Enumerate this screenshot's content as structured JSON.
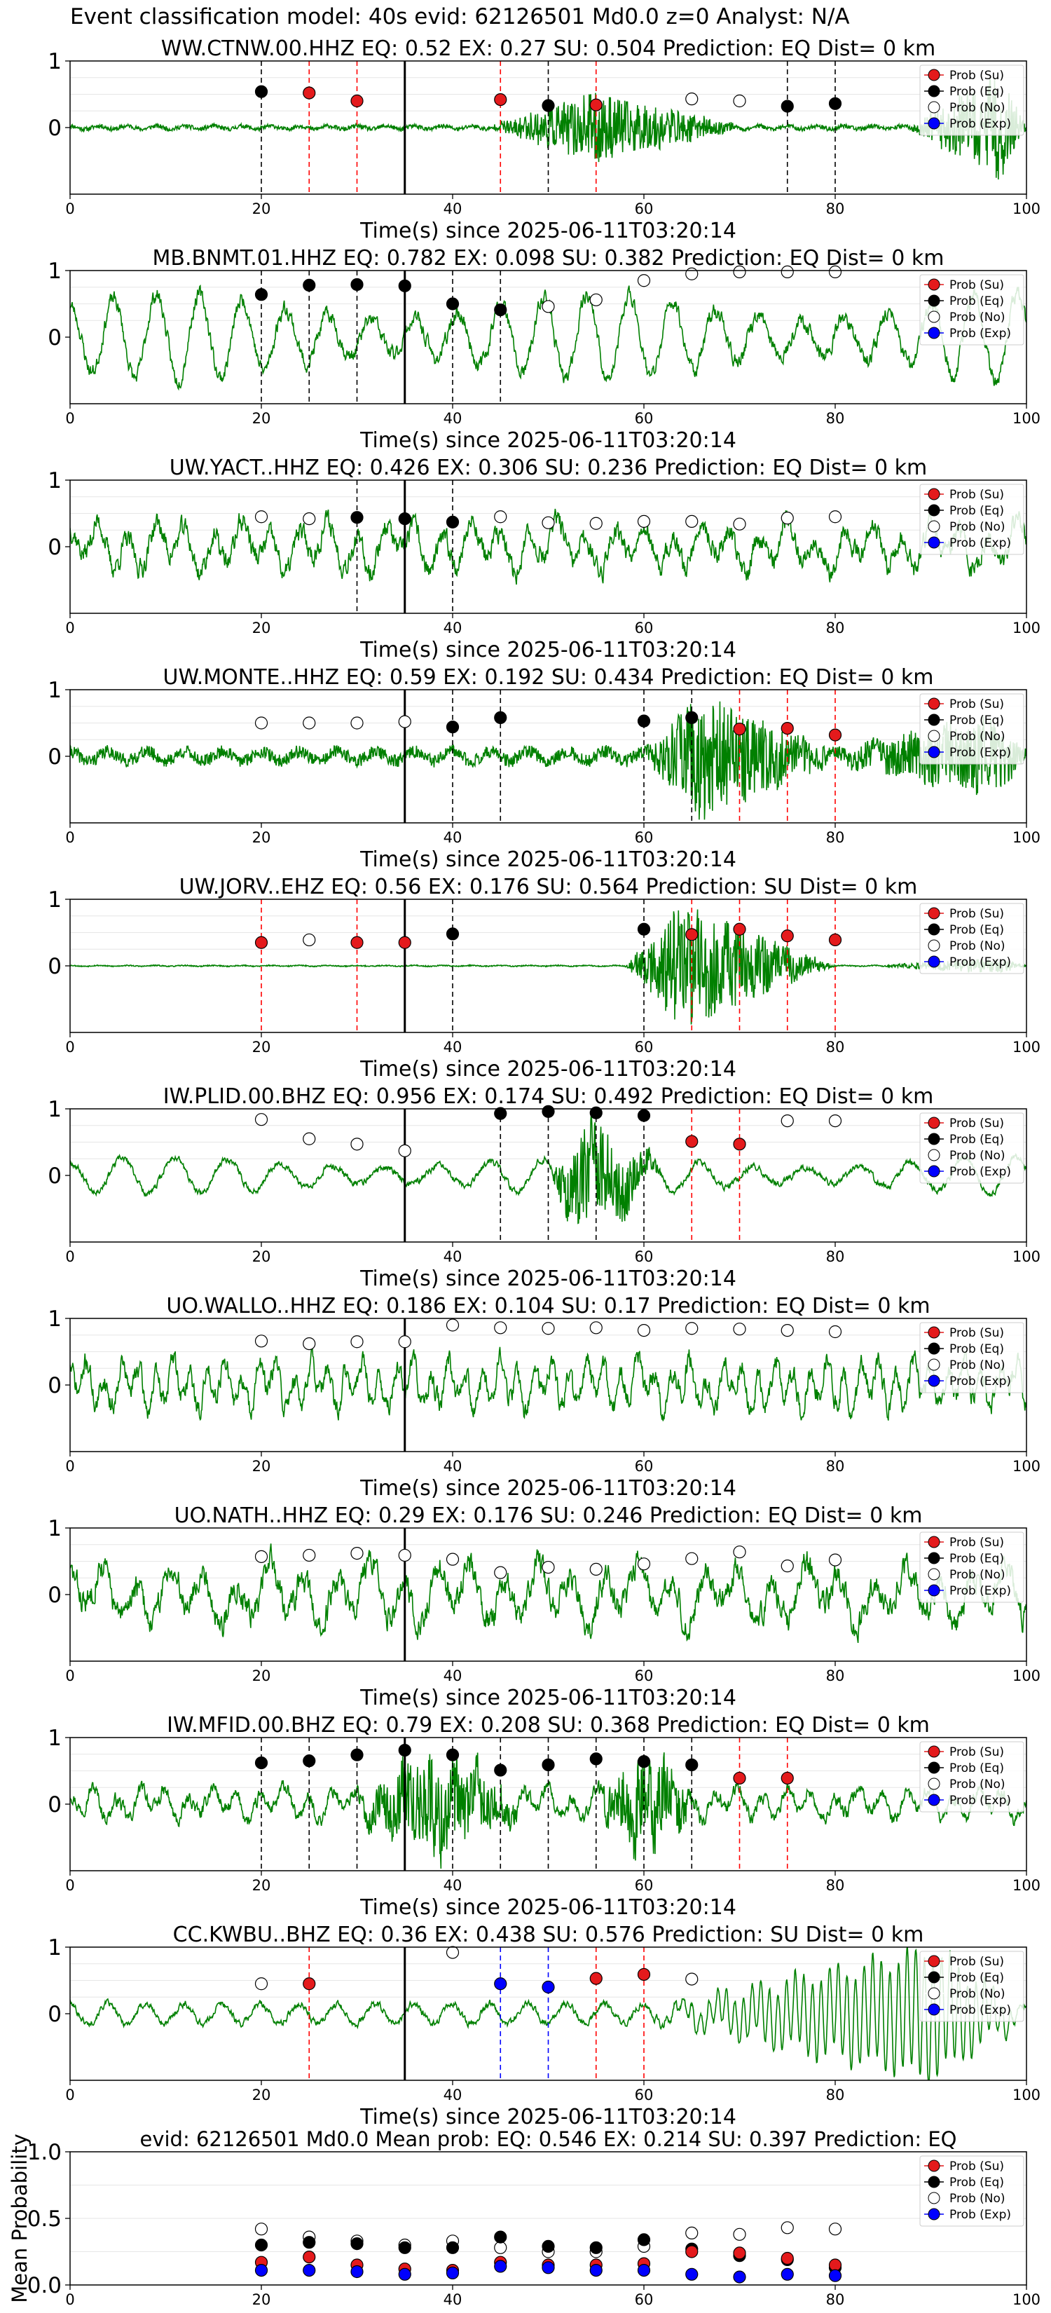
{
  "figure": {
    "suptitle": "Event classification model: 40s evid: 62126501 Md0.0 z=0 Analyst: N/A",
    "xlabel": "Time(s) since 2025-06-11T03:20:14",
    "legend_entries": [
      "Prob (Su)",
      "Prob (Eq)",
      "Prob (No)",
      "Prob (Exp)"
    ],
    "colors": {
      "waveform": "#008000",
      "su": "#e41a1c",
      "eq": "#000000",
      "no": "#ffffff",
      "exp": "#0000ff",
      "vline_su": "#ff0000",
      "vline_eq": "#000000",
      "vline_exp": "#0000ff",
      "pick": "#000000"
    }
  },
  "chart_data": [
    {
      "type": "line",
      "title": "WW.CTNW.00.HHZ   EQ: 0.52  EX: 0.27  SU: 0.504   Prediction: EQ    Dist= 0 km",
      "xlim": [
        0,
        100
      ],
      "ylim": [
        -1,
        1
      ],
      "xticks": [
        0,
        20,
        40,
        60,
        80,
        100
      ],
      "yticks": [
        0,
        1
      ],
      "pick_x": 35,
      "waveform": {
        "style": "quiet",
        "amp": 0.04,
        "seed": 11,
        "bursts": [
          {
            "start": 44,
            "peak": 55,
            "end": 70,
            "amp": 0.5
          },
          {
            "start": 88,
            "peak": 97,
            "end": 100,
            "amp": 0.8
          }
        ]
      },
      "points": [
        {
          "x": 20,
          "y": 0.54,
          "c": "eq"
        },
        {
          "x": 25,
          "y": 0.52,
          "c": "su"
        },
        {
          "x": 30,
          "y": 0.4,
          "c": "su"
        },
        {
          "x": 45,
          "y": 0.42,
          "c": "su"
        },
        {
          "x": 50,
          "y": 0.33,
          "c": "eq"
        },
        {
          "x": 55,
          "y": 0.34,
          "c": "su"
        },
        {
          "x": 65,
          "y": 0.43,
          "c": "no"
        },
        {
          "x": 70,
          "y": 0.4,
          "c": "no"
        },
        {
          "x": 75,
          "y": 0.32,
          "c": "eq"
        },
        {
          "x": 80,
          "y": 0.36,
          "c": "eq"
        }
      ]
    },
    {
      "type": "line",
      "title": "MB.BNMT.01.HHZ   EQ: 0.782  EX: 0.098  SU: 0.382   Prediction: EQ    Dist= 0 km",
      "xlim": [
        0,
        100
      ],
      "ylim": [
        -1,
        1
      ],
      "xticks": [
        0,
        20,
        40,
        60,
        80,
        100
      ],
      "yticks": [
        0,
        1
      ],
      "pick_x": 35,
      "waveform": {
        "style": "sine",
        "amp": 0.65,
        "seed": 23,
        "period": 4.5,
        "bursts": []
      },
      "points": [
        {
          "x": 20,
          "y": 0.64,
          "c": "eq"
        },
        {
          "x": 25,
          "y": 0.78,
          "c": "eq"
        },
        {
          "x": 30,
          "y": 0.79,
          "c": "eq"
        },
        {
          "x": 35,
          "y": 0.77,
          "c": "eq"
        },
        {
          "x": 40,
          "y": 0.5,
          "c": "eq"
        },
        {
          "x": 45,
          "y": 0.41,
          "c": "eq"
        },
        {
          "x": 50,
          "y": 0.46,
          "c": "no"
        },
        {
          "x": 55,
          "y": 0.56,
          "c": "no"
        },
        {
          "x": 60,
          "y": 0.85,
          "c": "no"
        },
        {
          "x": 65,
          "y": 0.95,
          "c": "no"
        },
        {
          "x": 70,
          "y": 0.98,
          "c": "no"
        },
        {
          "x": 75,
          "y": 0.98,
          "c": "no"
        },
        {
          "x": 80,
          "y": 0.98,
          "c": "no"
        }
      ]
    },
    {
      "type": "line",
      "title": "UW.YACT..HHZ   EQ: 0.426  EX: 0.306  SU: 0.236   Prediction: EQ    Dist= 0 km",
      "xlim": [
        0,
        100
      ],
      "ylim": [
        -1,
        1
      ],
      "xticks": [
        0,
        20,
        40,
        60,
        80,
        100
      ],
      "yticks": [
        0,
        1
      ],
      "pick_x": 35,
      "waveform": {
        "style": "noisy",
        "amp": 0.45,
        "seed": 37,
        "period": 3.0,
        "bursts": []
      },
      "points": [
        {
          "x": 20,
          "y": 0.45,
          "c": "no"
        },
        {
          "x": 25,
          "y": 0.42,
          "c": "no"
        },
        {
          "x": 30,
          "y": 0.44,
          "c": "eq"
        },
        {
          "x": 35,
          "y": 0.42,
          "c": "eq"
        },
        {
          "x": 40,
          "y": 0.37,
          "c": "eq"
        },
        {
          "x": 45,
          "y": 0.45,
          "c": "no"
        },
        {
          "x": 50,
          "y": 0.36,
          "c": "no"
        },
        {
          "x": 55,
          "y": 0.35,
          "c": "no"
        },
        {
          "x": 60,
          "y": 0.38,
          "c": "no"
        },
        {
          "x": 65,
          "y": 0.38,
          "c": "no"
        },
        {
          "x": 70,
          "y": 0.34,
          "c": "no"
        },
        {
          "x": 75,
          "y": 0.43,
          "c": "no"
        },
        {
          "x": 80,
          "y": 0.45,
          "c": "no"
        }
      ]
    },
    {
      "type": "line",
      "title": "UW.MONTE..HHZ   EQ: 0.59  EX: 0.192  SU: 0.434   Prediction: EQ    Dist= 0 km",
      "xlim": [
        0,
        100
      ],
      "ylim": [
        -1,
        1
      ],
      "xticks": [
        0,
        20,
        40,
        60,
        80,
        100
      ],
      "yticks": [
        0,
        1
      ],
      "pick_x": 35,
      "waveform": {
        "style": "quiet",
        "amp": 0.12,
        "seed": 41,
        "period": 4.0,
        "bursts": [
          {
            "start": 60,
            "peak": 66,
            "end": 80,
            "amp": 0.85
          },
          {
            "start": 80,
            "peak": 96,
            "end": 100,
            "amp": 0.5
          }
        ]
      },
      "points": [
        {
          "x": 20,
          "y": 0.5,
          "c": "no"
        },
        {
          "x": 25,
          "y": 0.5,
          "c": "no"
        },
        {
          "x": 30,
          "y": 0.5,
          "c": "no"
        },
        {
          "x": 35,
          "y": 0.52,
          "c": "no"
        },
        {
          "x": 40,
          "y": 0.44,
          "c": "eq"
        },
        {
          "x": 45,
          "y": 0.58,
          "c": "eq"
        },
        {
          "x": 60,
          "y": 0.53,
          "c": "eq"
        },
        {
          "x": 65,
          "y": 0.58,
          "c": "eq"
        },
        {
          "x": 70,
          "y": 0.41,
          "c": "su"
        },
        {
          "x": 75,
          "y": 0.42,
          "c": "su"
        },
        {
          "x": 80,
          "y": 0.32,
          "c": "su"
        }
      ]
    },
    {
      "type": "line",
      "title": "UW.JORV..EHZ   EQ: 0.56  EX: 0.176  SU: 0.564   Prediction: SU    Dist= 0 km",
      "xlim": [
        0,
        100
      ],
      "ylim": [
        -1,
        1
      ],
      "xticks": [
        0,
        20,
        40,
        60,
        80,
        100
      ],
      "yticks": [
        0,
        1
      ],
      "pick_x": 35,
      "waveform": {
        "style": "quiet",
        "amp": 0.01,
        "seed": 53,
        "bursts": [
          {
            "start": 58,
            "peak": 64,
            "end": 80,
            "amp": 0.95
          },
          {
            "start": 85,
            "peak": 97,
            "end": 100,
            "amp": 0.12
          }
        ]
      },
      "points": [
        {
          "x": 20,
          "y": 0.35,
          "c": "su"
        },
        {
          "x": 25,
          "y": 0.39,
          "c": "no"
        },
        {
          "x": 30,
          "y": 0.35,
          "c": "su"
        },
        {
          "x": 35,
          "y": 0.35,
          "c": "su"
        },
        {
          "x": 40,
          "y": 0.48,
          "c": "eq"
        },
        {
          "x": 60,
          "y": 0.55,
          "c": "eq"
        },
        {
          "x": 65,
          "y": 0.47,
          "c": "su"
        },
        {
          "x": 70,
          "y": 0.55,
          "c": "su"
        },
        {
          "x": 75,
          "y": 0.45,
          "c": "su"
        },
        {
          "x": 80,
          "y": 0.39,
          "c": "su"
        }
      ]
    },
    {
      "type": "line",
      "title": "IW.PLID.00.BHZ   EQ: 0.956  EX: 0.174  SU: 0.492   Prediction: EQ    Dist= 0 km",
      "xlim": [
        0,
        100
      ],
      "ylim": [
        -1,
        1
      ],
      "xticks": [
        0,
        20,
        40,
        60,
        80,
        100
      ],
      "yticks": [
        0,
        1
      ],
      "pick_x": 35,
      "waveform": {
        "style": "sine",
        "amp": 0.28,
        "seed": 67,
        "period": 5.5,
        "bursts": [
          {
            "start": 50,
            "peak": 54,
            "end": 62,
            "amp": 0.8
          }
        ]
      },
      "points": [
        {
          "x": 20,
          "y": 0.84,
          "c": "no"
        },
        {
          "x": 25,
          "y": 0.55,
          "c": "no"
        },
        {
          "x": 30,
          "y": 0.47,
          "c": "no"
        },
        {
          "x": 35,
          "y": 0.37,
          "c": "no"
        },
        {
          "x": 45,
          "y": 0.93,
          "c": "eq"
        },
        {
          "x": 50,
          "y": 0.96,
          "c": "eq"
        },
        {
          "x": 55,
          "y": 0.94,
          "c": "eq"
        },
        {
          "x": 60,
          "y": 0.9,
          "c": "eq"
        },
        {
          "x": 65,
          "y": 0.51,
          "c": "su"
        },
        {
          "x": 70,
          "y": 0.47,
          "c": "su"
        },
        {
          "x": 75,
          "y": 0.82,
          "c": "no"
        },
        {
          "x": 80,
          "y": 0.82,
          "c": "no"
        }
      ]
    },
    {
      "type": "line",
      "title": "UO.WALLO..HHZ   EQ: 0.186  EX: 0.104  SU: 0.17   Prediction: EQ    Dist= 0 km",
      "xlim": [
        0,
        100
      ],
      "ylim": [
        -1,
        1
      ],
      "xticks": [
        0,
        20,
        40,
        60,
        80,
        100
      ],
      "yticks": [
        0,
        1
      ],
      "pick_x": 35,
      "waveform": {
        "style": "noisy",
        "amp": 0.45,
        "seed": 71,
        "period": 1.8,
        "bursts": []
      },
      "points": [
        {
          "x": 20,
          "y": 0.66,
          "c": "no"
        },
        {
          "x": 25,
          "y": 0.62,
          "c": "no"
        },
        {
          "x": 30,
          "y": 0.65,
          "c": "no"
        },
        {
          "x": 35,
          "y": 0.65,
          "c": "no"
        },
        {
          "x": 40,
          "y": 0.9,
          "c": "no"
        },
        {
          "x": 45,
          "y": 0.86,
          "c": "no"
        },
        {
          "x": 50,
          "y": 0.85,
          "c": "no"
        },
        {
          "x": 55,
          "y": 0.86,
          "c": "no"
        },
        {
          "x": 60,
          "y": 0.82,
          "c": "no"
        },
        {
          "x": 65,
          "y": 0.85,
          "c": "no"
        },
        {
          "x": 70,
          "y": 0.84,
          "c": "no"
        },
        {
          "x": 75,
          "y": 0.82,
          "c": "no"
        },
        {
          "x": 80,
          "y": 0.8,
          "c": "no"
        }
      ]
    },
    {
      "type": "line",
      "title": "UO.NATH..HHZ   EQ: 0.29  EX: 0.176  SU: 0.246   Prediction: EQ    Dist= 0 km",
      "xlim": [
        0,
        100
      ],
      "ylim": [
        -1,
        1
      ],
      "xticks": [
        0,
        20,
        40,
        60,
        80,
        100
      ],
      "yticks": [
        0,
        1
      ],
      "pick_x": 35,
      "waveform": {
        "style": "noisy",
        "amp": 0.55,
        "seed": 83,
        "period": 3.5,
        "bursts": []
      },
      "points": [
        {
          "x": 20,
          "y": 0.57,
          "c": "no"
        },
        {
          "x": 25,
          "y": 0.59,
          "c": "no"
        },
        {
          "x": 30,
          "y": 0.62,
          "c": "no"
        },
        {
          "x": 35,
          "y": 0.59,
          "c": "no"
        },
        {
          "x": 40,
          "y": 0.53,
          "c": "no"
        },
        {
          "x": 45,
          "y": 0.33,
          "c": "no"
        },
        {
          "x": 50,
          "y": 0.41,
          "c": "no"
        },
        {
          "x": 55,
          "y": 0.38,
          "c": "no"
        },
        {
          "x": 60,
          "y": 0.46,
          "c": "no"
        },
        {
          "x": 65,
          "y": 0.54,
          "c": "no"
        },
        {
          "x": 70,
          "y": 0.64,
          "c": "no"
        },
        {
          "x": 75,
          "y": 0.43,
          "c": "no"
        },
        {
          "x": 80,
          "y": 0.52,
          "c": "no"
        }
      ]
    },
    {
      "type": "line",
      "title": "IW.MFID.00.BHZ   EQ: 0.79  EX: 0.208  SU: 0.368   Prediction: EQ    Dist= 0 km",
      "xlim": [
        0,
        100
      ],
      "ylim": [
        -1,
        1
      ],
      "xticks": [
        0,
        20,
        40,
        60,
        80,
        100
      ],
      "yticks": [
        0,
        1
      ],
      "pick_x": 35,
      "waveform": {
        "style": "noisy",
        "amp": 0.3,
        "seed": 97,
        "period": 2.5,
        "bursts": [
          {
            "start": 30,
            "peak": 38,
            "end": 48,
            "amp": 0.7
          },
          {
            "start": 55,
            "peak": 60,
            "end": 66,
            "amp": 0.7
          }
        ]
      },
      "points": [
        {
          "x": 20,
          "y": 0.62,
          "c": "eq"
        },
        {
          "x": 25,
          "y": 0.65,
          "c": "eq"
        },
        {
          "x": 30,
          "y": 0.74,
          "c": "eq"
        },
        {
          "x": 35,
          "y": 0.81,
          "c": "eq"
        },
        {
          "x": 40,
          "y": 0.74,
          "c": "eq"
        },
        {
          "x": 45,
          "y": 0.51,
          "c": "eq"
        },
        {
          "x": 50,
          "y": 0.59,
          "c": "eq"
        },
        {
          "x": 55,
          "y": 0.68,
          "c": "eq"
        },
        {
          "x": 60,
          "y": 0.64,
          "c": "eq"
        },
        {
          "x": 65,
          "y": 0.59,
          "c": "eq"
        },
        {
          "x": 70,
          "y": 0.39,
          "c": "su"
        },
        {
          "x": 75,
          "y": 0.39,
          "c": "su"
        }
      ]
    },
    {
      "type": "line",
      "title": "CC.KWBU..BHZ   EQ: 0.36  EX: 0.438  SU: 0.576   Prediction: SU    Dist= 0 km",
      "xlim": [
        0,
        100
      ],
      "ylim": [
        -1,
        1
      ],
      "xticks": [
        0,
        20,
        40,
        60,
        80,
        100
      ],
      "yticks": [
        0,
        1
      ],
      "pick_x": 35,
      "waveform": {
        "style": "osc",
        "amp": 0.25,
        "seed": 101,
        "period": 1.0,
        "bursts": [
          {
            "start": 60,
            "peak": 90,
            "end": 100,
            "amp": 0.95
          }
        ]
      },
      "points": [
        {
          "x": 20,
          "y": 0.45,
          "c": "no"
        },
        {
          "x": 25,
          "y": 0.45,
          "c": "su"
        },
        {
          "x": 40,
          "y": 0.92,
          "c": "no"
        },
        {
          "x": 45,
          "y": 0.45,
          "c": "exp"
        },
        {
          "x": 50,
          "y": 0.4,
          "c": "exp"
        },
        {
          "x": 55,
          "y": 0.53,
          "c": "su"
        },
        {
          "x": 60,
          "y": 0.59,
          "c": "su"
        },
        {
          "x": 65,
          "y": 0.52,
          "c": "no"
        }
      ]
    },
    {
      "type": "scatter",
      "title": "evid: 62126501  Md0.0   Mean prob:   EQ: 0.546  EX: 0.214  SU: 0.397   Prediction: EQ",
      "ylabel": "Mean Probability",
      "xlim": [
        0,
        100
      ],
      "ylim": [
        0,
        1
      ],
      "xticks": [
        0,
        20,
        40,
        60,
        80,
        100
      ],
      "yticks": [
        0.0,
        0.5,
        1.0
      ],
      "series": [
        {
          "name": "Prob (No)",
          "c": "no",
          "x": [
            20,
            25,
            30,
            35,
            40,
            45,
            50,
            55,
            60,
            65,
            70,
            75,
            80
          ],
          "y": [
            0.42,
            0.36,
            0.33,
            0.3,
            0.33,
            0.28,
            0.25,
            0.25,
            0.29,
            0.39,
            0.38,
            0.43,
            0.42
          ]
        },
        {
          "name": "Prob (Eq)",
          "c": "eq",
          "x": [
            20,
            25,
            30,
            35,
            40,
            45,
            50,
            55,
            60,
            65,
            70,
            75,
            80
          ],
          "y": [
            0.3,
            0.32,
            0.31,
            0.28,
            0.28,
            0.36,
            0.29,
            0.28,
            0.34,
            0.27,
            0.22,
            0.19,
            0.13
          ]
        },
        {
          "name": "Prob (Su)",
          "c": "su",
          "x": [
            20,
            25,
            30,
            35,
            40,
            45,
            50,
            55,
            60,
            65,
            70,
            75,
            80
          ],
          "y": [
            0.17,
            0.21,
            0.15,
            0.12,
            0.11,
            0.17,
            0.15,
            0.15,
            0.16,
            0.25,
            0.24,
            0.2,
            0.15
          ]
        },
        {
          "name": "Prob (Exp)",
          "c": "exp",
          "x": [
            20,
            25,
            30,
            35,
            40,
            45,
            50,
            55,
            60,
            65,
            70,
            75,
            80
          ],
          "y": [
            0.11,
            0.11,
            0.1,
            0.08,
            0.09,
            0.14,
            0.13,
            0.11,
            0.11,
            0.08,
            0.06,
            0.08,
            0.07
          ]
        }
      ]
    }
  ]
}
